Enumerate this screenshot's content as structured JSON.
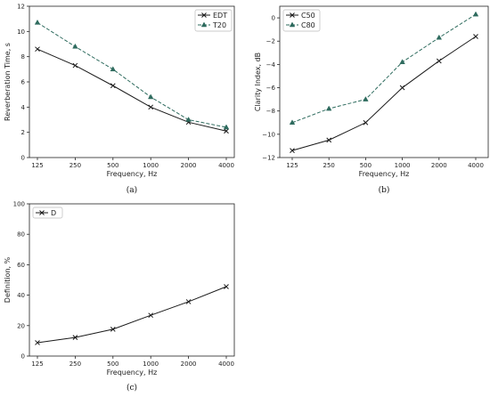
{
  "chart_data": [
    {
      "type": "line",
      "caption": "(a)",
      "categories": [
        "125",
        "250",
        "500",
        "1000",
        "2000",
        "4000"
      ],
      "xlabel": "Frequency, Hz",
      "ylabel": "Reverberation Time, s",
      "ylim": [
        0,
        12
      ],
      "yticks": [
        "0",
        "2",
        "4",
        "6",
        "8",
        "10",
        "12"
      ],
      "yticks_values": [
        0,
        2,
        4,
        6,
        8,
        10,
        12
      ],
      "legend_position": "top-right",
      "grid": false,
      "series": [
        {
          "name": "EDT",
          "values": [
            8.6,
            7.3,
            5.7,
            4.0,
            2.8,
            2.1
          ],
          "color": "#1a1a1a",
          "marker": "x",
          "dash": "solid"
        },
        {
          "name": "T20",
          "values": [
            10.7,
            8.8,
            7.0,
            4.8,
            3.0,
            2.4
          ],
          "color": "#2e6b5e",
          "marker": "triangle",
          "dash": "dashed"
        }
      ]
    },
    {
      "type": "line",
      "caption": "(b)",
      "categories": [
        "125",
        "250",
        "500",
        "1000",
        "2000",
        "4000"
      ],
      "xlabel": "Frequency, Hz",
      "ylabel": "Clarity Index, dB",
      "ylim": [
        -12,
        1
      ],
      "yticks": [
        "−12",
        "−10",
        "−8",
        "−6",
        "−4",
        "−2",
        "0"
      ],
      "yticks_values": [
        -12,
        -10,
        -8,
        -6,
        -4,
        -2,
        0
      ],
      "legend_position": "top-left",
      "grid": false,
      "series": [
        {
          "name": "C50",
          "values": [
            -11.4,
            -10.5,
            -9.0,
            -6.0,
            -3.7,
            -1.6
          ],
          "color": "#1a1a1a",
          "marker": "x",
          "dash": "solid"
        },
        {
          "name": "C80",
          "values": [
            -9.0,
            -7.8,
            -7.0,
            -3.8,
            -1.7,
            0.3
          ],
          "color": "#2e6b5e",
          "marker": "triangle",
          "dash": "dashed"
        }
      ]
    },
    {
      "type": "line",
      "caption": "(c)",
      "categories": [
        "125",
        "250",
        "500",
        "1000",
        "2000",
        "4000"
      ],
      "xlabel": "Frequency, Hz",
      "ylabel": "Definition, %",
      "ylim": [
        0,
        100
      ],
      "yticks": [
        "0",
        "20",
        "40",
        "60",
        "80",
        "100"
      ],
      "yticks_values": [
        0,
        20,
        40,
        60,
        80,
        100
      ],
      "legend_position": "top-left",
      "grid": false,
      "series": [
        {
          "name": "D",
          "values": [
            8.8,
            12.2,
            17.6,
            26.8,
            35.7,
            45.6
          ],
          "color": "#1a1a1a",
          "marker": "x",
          "dash": "solid"
        }
      ]
    }
  ]
}
